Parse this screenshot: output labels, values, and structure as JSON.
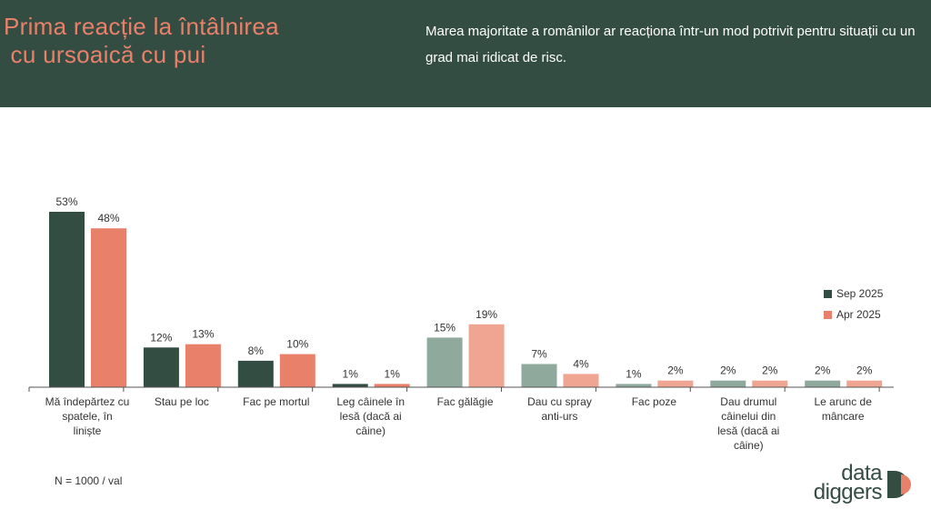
{
  "header": {
    "title": "Prima reacție la întâlnirea\n cu ursoaică cu pui",
    "subtitle": "Marea majoritate a românilor ar reacționa într-un mod potrivit pentru situații cu un grad mai ridicat de risc."
  },
  "chart_data": {
    "type": "bar",
    "categories": [
      "Mă îndepărtez cu spatele, în liniște",
      "Stau pe loc",
      "Fac pe mortul",
      "Leg câinele în lesă (dacă ai câine)",
      "Fac gălăgie",
      "Dau cu spray anti-urs",
      "Fac poze",
      "Dau drumul câinelui din lesă (dacă ai câine)",
      "Le arunc de mâncare"
    ],
    "series": [
      {
        "name": "Sep 2025",
        "values": [
          53,
          12,
          8,
          1,
          15,
          7,
          1,
          2,
          2
        ]
      },
      {
        "name": "Apr 2025",
        "values": [
          48,
          13,
          10,
          1,
          19,
          4,
          2,
          2,
          2
        ]
      }
    ],
    "value_suffix": "%",
    "category_tone": [
      "strong",
      "strong",
      "strong",
      "strong",
      "light",
      "light",
      "light",
      "light",
      "light"
    ],
    "colors": {
      "sep_strong": "#344d43",
      "apr_strong": "#e9806a",
      "sep_light": "#8fa99d",
      "apr_light": "#f0a592",
      "axis": "#555555",
      "label": "#333333"
    },
    "legend_position": "right",
    "ylim": [
      0,
      53
    ]
  },
  "footnote": "N = 1000 / val",
  "logo": {
    "line1": "data",
    "line2": "diggers"
  }
}
